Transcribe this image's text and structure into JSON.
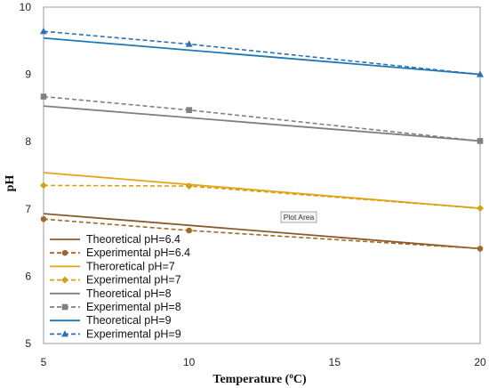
{
  "chart_data": {
    "type": "line",
    "xlabel_main": "Temperature (",
    "xlabel_sup": "o",
    "xlabel_tail": "C)",
    "ylabel": "pH",
    "xlim": [
      5,
      20
    ],
    "ylim": [
      5,
      10
    ],
    "x_ticks": [
      "5",
      "10",
      "15",
      "20"
    ],
    "y_ticks": [
      "5",
      "6",
      "7",
      "8",
      "9",
      "10"
    ],
    "grid": false,
    "legend_position": "bottom-left",
    "tooltip": "Plot Area",
    "series": [
      {
        "name": "Theoretical pH=6.4",
        "color": "#8B5A2B",
        "dash": "solid",
        "marker": "none",
        "x": [
          5,
          20
        ],
        "y": [
          6.93,
          6.41
        ]
      },
      {
        "name": "Experimental pH=6.4",
        "color": "#A0692A",
        "dash": "dashed",
        "marker": "circle",
        "x": [
          5,
          10,
          20
        ],
        "y": [
          6.85,
          6.68,
          6.41
        ]
      },
      {
        "name": "Theroretical pH=7",
        "color": "#E8A317",
        "dash": "solid",
        "marker": "none",
        "x": [
          5,
          20
        ],
        "y": [
          7.54,
          7.01
        ]
      },
      {
        "name": "Experimental pH=7",
        "color": "#D4A017",
        "dash": "dashed",
        "marker": "diamond",
        "x": [
          5,
          10,
          20
        ],
        "y": [
          7.35,
          7.34,
          7.01
        ]
      },
      {
        "name": "Theoretical pH=8",
        "color": "#808080",
        "dash": "solid",
        "marker": "none",
        "x": [
          5,
          20
        ],
        "y": [
          8.53,
          8.01
        ]
      },
      {
        "name": "Experimental pH=8",
        "color": "#808080",
        "dash": "dashed",
        "marker": "square",
        "x": [
          5,
          10,
          20
        ],
        "y": [
          8.67,
          8.47,
          8.01
        ]
      },
      {
        "name": "Theoretical pH=9",
        "color": "#1F77B4",
        "dash": "solid",
        "marker": "none",
        "x": [
          5,
          20
        ],
        "y": [
          9.54,
          9.0
        ]
      },
      {
        "name": "Experimental pH=9",
        "color": "#2E6FB5",
        "dash": "dashed",
        "marker": "triangle",
        "x": [
          5,
          10,
          20
        ],
        "y": [
          9.64,
          9.45,
          9.0
        ]
      }
    ]
  }
}
